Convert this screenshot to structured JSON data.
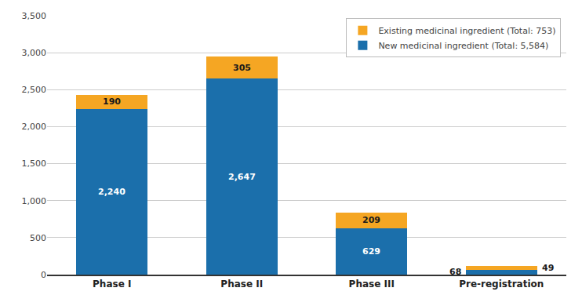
{
  "chart_data": {
    "type": "bar",
    "stacked": true,
    "categories": [
      "Phase I",
      "Phase II",
      "Phase III",
      "Pre-registration"
    ],
    "series": [
      {
        "name": "New medicinal ingredient (Total: 5,584)",
        "color": "#1B6FAB",
        "values": [
          2240,
          2647,
          629,
          68
        ],
        "value_labels": [
          "2,240",
          "2,647",
          "629",
          "68"
        ]
      },
      {
        "name": "Existing medicinal ingredient (Total: 753)",
        "color": "#F5A623",
        "values": [
          190,
          305,
          209,
          49
        ],
        "value_labels": [
          "190",
          "305",
          "209",
          "49"
        ]
      }
    ],
    "ylim": [
      0,
      3500
    ],
    "yticks": [
      0,
      500,
      {
        "value": 1000,
        "label": "1,000"
      },
      {
        "value": 1500,
        "label": "1,500"
      },
      {
        "value": 2000,
        "label": "2,000"
      },
      {
        "value": 2500,
        "label": "2,500"
      },
      {
        "value": 3000,
        "label": "3,000"
      },
      {
        "value": 3500,
        "label": "3,500"
      }
    ],
    "grid": true,
    "legend": "upper right",
    "data_labels": true
  }
}
